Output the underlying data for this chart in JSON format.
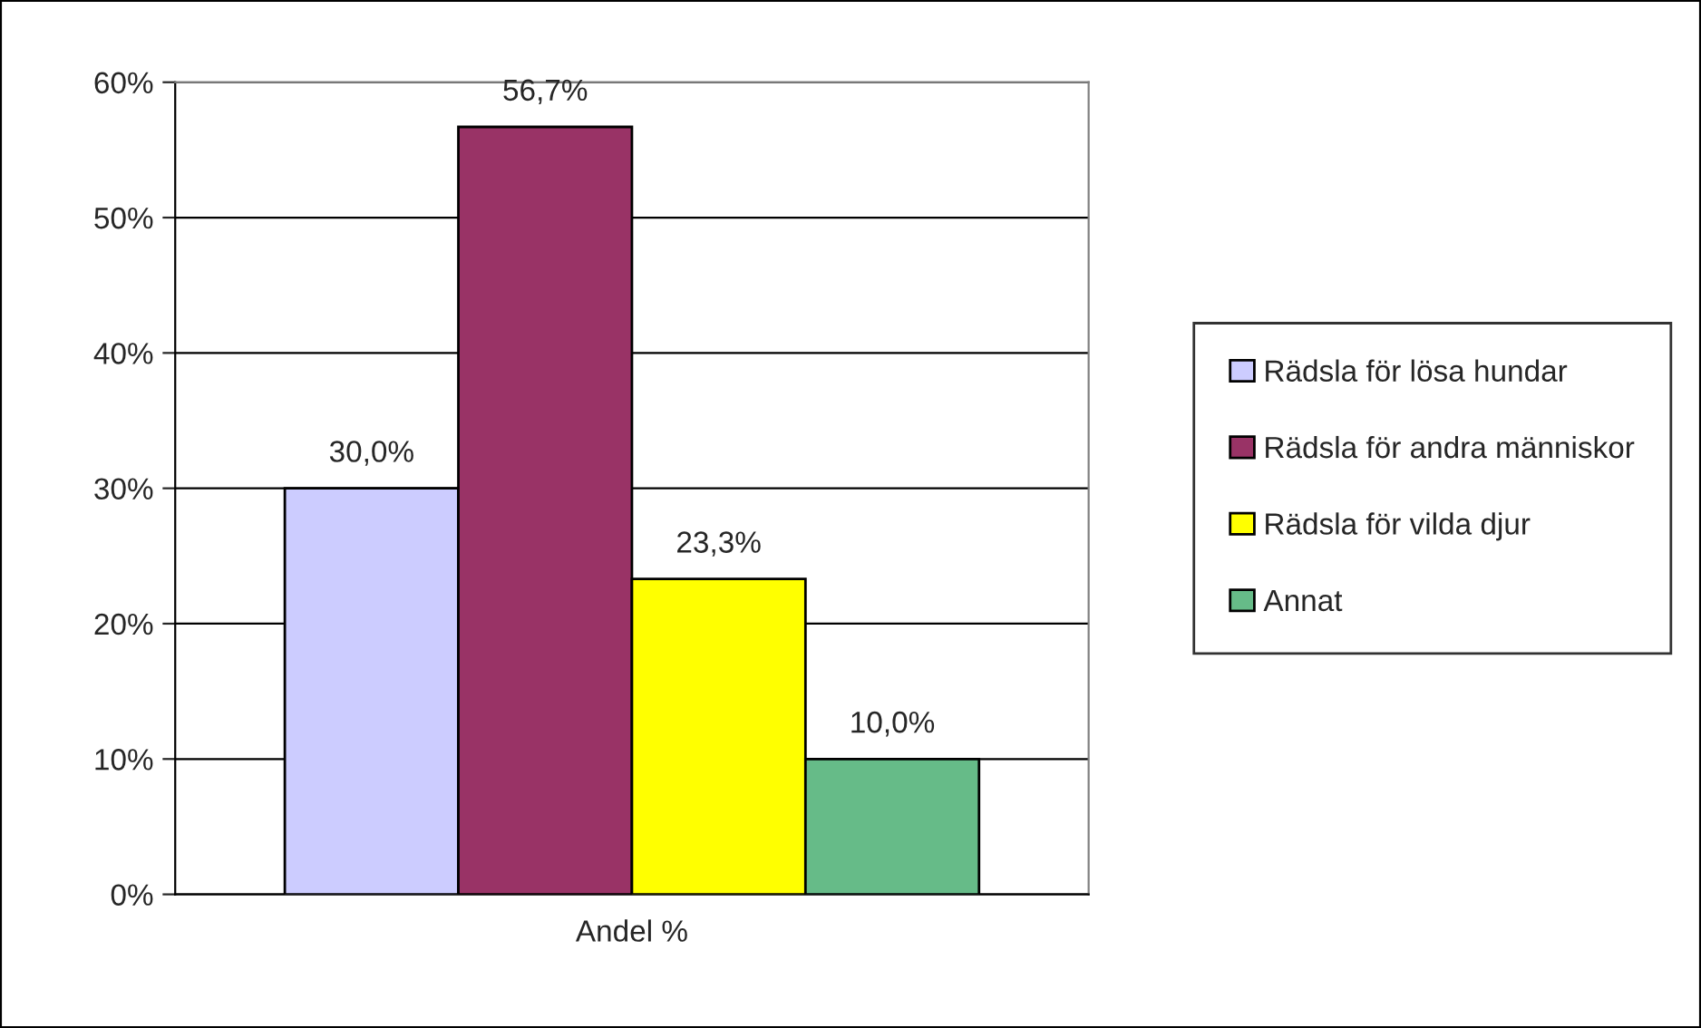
{
  "chart_data": {
    "type": "bar",
    "categories": [
      "Andel %"
    ],
    "series": [
      {
        "name": "Rädsla för lösa hundar",
        "color": "#ccccff",
        "values": [
          30.0
        ],
        "value_labels": [
          "30,0%"
        ]
      },
      {
        "name": "Rädsla för andra människor",
        "color": "#993366",
        "values": [
          56.7
        ],
        "value_labels": [
          "56,7%"
        ]
      },
      {
        "name": "Rädsla för vilda djur",
        "color": "#ffff00",
        "values": [
          23.3
        ],
        "value_labels": [
          "23,3%"
        ]
      },
      {
        "name": "Annat",
        "color": "#66bb88",
        "values": [
          10.0
        ],
        "value_labels": [
          "10,0%"
        ]
      }
    ],
    "ylim": [
      0,
      60
    ],
    "yticks": [
      {
        "value": 0,
        "label": "0%"
      },
      {
        "value": 10,
        "label": "10%"
      },
      {
        "value": 20,
        "label": "20%"
      },
      {
        "value": 30,
        "label": "30%"
      },
      {
        "value": 40,
        "label": "40%"
      },
      {
        "value": 50,
        "label": "50%"
      },
      {
        "value": 60,
        "label": "60%"
      }
    ],
    "grid": "y",
    "legend": "right"
  }
}
